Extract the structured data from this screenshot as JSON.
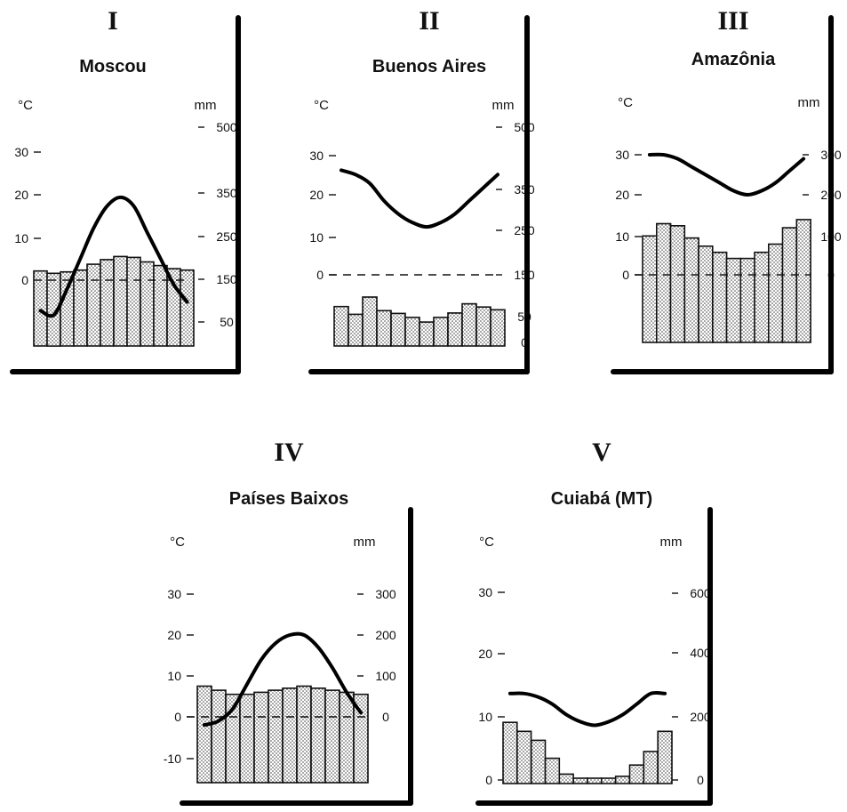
{
  "chart_data": [
    {
      "type": "bar",
      "numeral": "I",
      "title": "Moscou",
      "temp_unit": "°C",
      "precip_unit": "mm",
      "temp_ticks": [
        "0",
        "10",
        "20",
        "30"
      ],
      "precip_ticks": [
        "50",
        "150",
        "250",
        "350",
        "500"
      ],
      "temperature_c": [
        -7,
        -8,
        -2,
        5,
        12,
        17,
        19,
        17,
        11,
        5,
        -1,
        -5
      ],
      "precipitation_mm": [
        30,
        25,
        28,
        32,
        45,
        55,
        62,
        60,
        50,
        42,
        35,
        32
      ]
    },
    {
      "type": "bar",
      "numeral": "II",
      "title": "Buenos Aires",
      "temp_unit": "°C",
      "precip_unit": "mm",
      "temp_ticks": [
        "0",
        "10",
        "20",
        "30"
      ],
      "precip_ticks": [
        "0",
        "50",
        "150",
        "250",
        "350",
        "500"
      ],
      "temperature_c": [
        24,
        23,
        21,
        17,
        14,
        12,
        11,
        12,
        14,
        17,
        20,
        23
      ],
      "precipitation_mm": [
        79,
        62,
        100,
        70,
        64,
        55,
        45,
        55,
        65,
        85,
        78,
        72
      ]
    },
    {
      "type": "bar",
      "numeral": "III",
      "title": "Amazônia",
      "temp_unit": "°C",
      "precip_unit": "mm",
      "temp_ticks": [
        "0",
        "10",
        "20",
        "30"
      ],
      "precip_ticks": [
        "0",
        "100",
        "200",
        "300"
      ],
      "temperature_c": [
        30,
        30,
        29,
        27,
        25,
        23,
        21,
        20,
        21,
        23,
        26,
        29
      ],
      "precipitation_mm": [
        95,
        125,
        120,
        90,
        70,
        55,
        40,
        40,
        55,
        75,
        115,
        135
      ]
    },
    {
      "type": "bar",
      "numeral": "IV",
      "title": "Países Baixos",
      "temp_unit": "°C",
      "precip_unit": "mm",
      "temp_ticks": [
        "-10",
        "0",
        "10",
        "20",
        "30"
      ],
      "precip_ticks": [
        "0",
        "100",
        "200",
        "300"
      ],
      "temperature_c": [
        -2,
        -1,
        2,
        8,
        14,
        18,
        20,
        20,
        17,
        12,
        6,
        1
      ],
      "precipitation_mm": [
        75,
        65,
        55,
        55,
        60,
        65,
        70,
        75,
        70,
        65,
        60,
        55
      ]
    },
    {
      "type": "bar",
      "numeral": "V",
      "title": "Cuiabá (MT)",
      "temp_unit": "°C",
      "precip_unit": "mm",
      "temp_ticks": [
        "0",
        "10",
        "20",
        "30"
      ],
      "precip_ticks": [
        "0",
        "200",
        "400",
        "600"
      ],
      "temperature_c": [
        26,
        26,
        25,
        23,
        20,
        18,
        17,
        18,
        20,
        23,
        26,
        26
      ],
      "precipitation_mm": [
        280,
        240,
        200,
        120,
        50,
        25,
        10,
        15,
        40,
        90,
        150,
        240
      ]
    }
  ]
}
